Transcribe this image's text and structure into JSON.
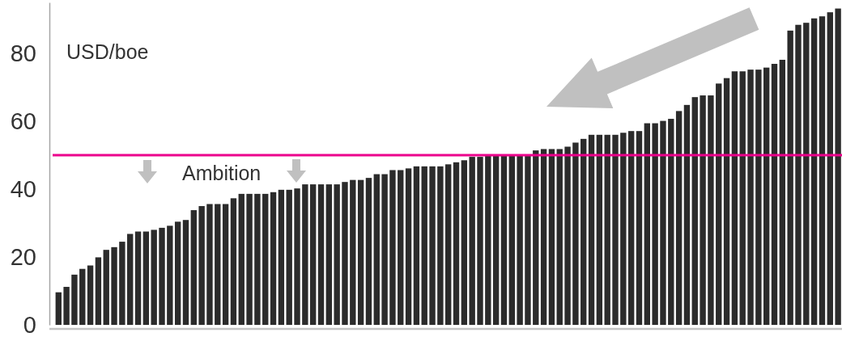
{
  "chart_data": {
    "type": "bar",
    "ylabel": "USD/boe",
    "categories": [
      null,
      null,
      null,
      null,
      null,
      null,
      null,
      null,
      null,
      null,
      null,
      null,
      null,
      null,
      null,
      null,
      null,
      null,
      null,
      null,
      null,
      null,
      null,
      null,
      null,
      null,
      null,
      null,
      null,
      null,
      null,
      null,
      null,
      null,
      null,
      null,
      null,
      null,
      null,
      null,
      null,
      null,
      null,
      null,
      null,
      null,
      null,
      null,
      null,
      null,
      null,
      null,
      null,
      null,
      null,
      null,
      null,
      null,
      null,
      null,
      null,
      null,
      null,
      null,
      null,
      null,
      null,
      null,
      null,
      null,
      null,
      null,
      null,
      null,
      null,
      null,
      null,
      null,
      null,
      null,
      null,
      null,
      null,
      null,
      null,
      null,
      null,
      null,
      null,
      null,
      null,
      null,
      null,
      null,
      null,
      null,
      null,
      null,
      null
    ],
    "values": [
      9.6,
      11.2,
      14.8,
      16.5,
      17.5,
      19.9,
      22.1,
      22.9,
      24.5,
      26.8,
      27.5,
      27.5,
      28.0,
      28.6,
      29.2,
      30.4,
      30.9,
      33.8,
      35.0,
      35.6,
      35.6,
      35.6,
      37.3,
      38.6,
      38.6,
      38.6,
      38.6,
      39.1,
      39.8,
      39.8,
      40.2,
      41.4,
      41.4,
      41.4,
      41.4,
      41.4,
      42.1,
      42.7,
      42.7,
      43.3,
      44.4,
      44.4,
      45.6,
      45.6,
      46.1,
      46.7,
      46.7,
      46.7,
      46.7,
      47.3,
      47.9,
      48.5,
      49.5,
      49.5,
      50.0,
      50.0,
      50.0,
      50.0,
      50.0,
      50.2,
      51.4,
      51.8,
      51.8,
      51.8,
      52.5,
      53.7,
      54.8,
      56.0,
      56.0,
      56.0,
      56.0,
      56.6,
      57.1,
      57.1,
      59.4,
      59.4,
      60.1,
      60.7,
      63.0,
      64.8,
      67.1,
      67.6,
      67.6,
      71.1,
      72.7,
      74.7,
      74.7,
      75.2,
      75.2,
      75.8,
      76.9,
      78.1,
      86.7,
      88.4,
      89.0,
      90.3,
      90.9,
      92.1,
      93.2
    ],
    "color": "#2b2b2b",
    "ylim": [
      0,
      95
    ],
    "yticks": [
      0,
      20,
      40,
      60,
      80
    ],
    "tick_labels": "y",
    "ref_lines": [
      {
        "axis": "y",
        "value": 50,
        "label": "Ambition",
        "color": "#ec008c"
      }
    ]
  }
}
